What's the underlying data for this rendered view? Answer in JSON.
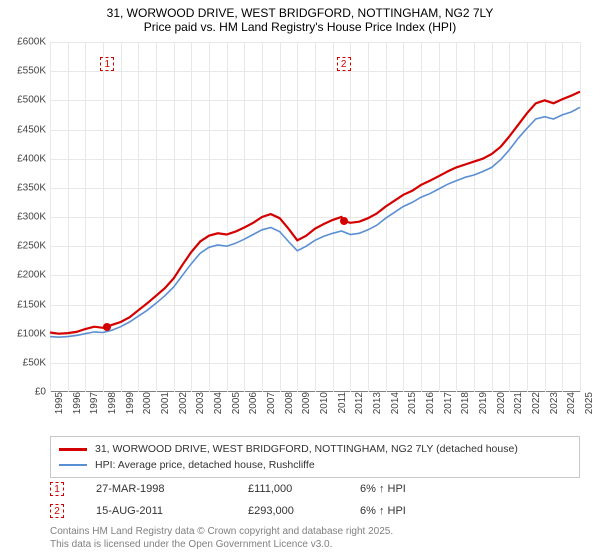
{
  "title": {
    "line1": "31, WORWOOD DRIVE, WEST BRIDGFORD, NOTTINGHAM, NG2 7LY",
    "line2": "Price paid vs. HM Land Registry's House Price Index (HPI)"
  },
  "chart": {
    "type": "line",
    "background_color": "#ffffff",
    "grid_color": "#e8e8e8",
    "axis_color": "#808080",
    "label_color": "#444444",
    "label_fontsize": 10,
    "x": {
      "min": 1995,
      "max": 2025,
      "tick_step": 1,
      "ticks": [
        1995,
        1996,
        1997,
        1998,
        1999,
        2000,
        2001,
        2002,
        2003,
        2004,
        2005,
        2006,
        2007,
        2008,
        2009,
        2010,
        2011,
        2012,
        2013,
        2014,
        2015,
        2016,
        2017,
        2018,
        2019,
        2020,
        2021,
        2022,
        2023,
        2024,
        2025
      ]
    },
    "y": {
      "min": 0,
      "max": 600000,
      "tick_step": 50000,
      "tick_labels": [
        "£0",
        "£50K",
        "£100K",
        "£150K",
        "£200K",
        "£250K",
        "£300K",
        "£350K",
        "£400K",
        "£450K",
        "£500K",
        "£550K",
        "£600K"
      ]
    },
    "series": [
      {
        "name": "price_paid",
        "label": "31, WORWOOD DRIVE, WEST BRIDGFORD, NOTTINGHAM, NG2 7LY (detached house)",
        "color": "#d40000",
        "width": 2.2,
        "data": [
          [
            1995.0,
            102000
          ],
          [
            1995.5,
            100000
          ],
          [
            1996.0,
            101000
          ],
          [
            1996.5,
            103000
          ],
          [
            1997.0,
            108000
          ],
          [
            1997.5,
            112000
          ],
          [
            1998.0,
            110000
          ],
          [
            1998.24,
            111000
          ],
          [
            1998.5,
            115000
          ],
          [
            1999.0,
            120000
          ],
          [
            1999.5,
            128000
          ],
          [
            2000.0,
            140000
          ],
          [
            2000.5,
            152000
          ],
          [
            2001.0,
            165000
          ],
          [
            2001.5,
            178000
          ],
          [
            2002.0,
            195000
          ],
          [
            2002.5,
            218000
          ],
          [
            2003.0,
            240000
          ],
          [
            2003.5,
            258000
          ],
          [
            2004.0,
            268000
          ],
          [
            2004.5,
            272000
          ],
          [
            2005.0,
            270000
          ],
          [
            2005.5,
            275000
          ],
          [
            2006.0,
            282000
          ],
          [
            2006.5,
            290000
          ],
          [
            2007.0,
            300000
          ],
          [
            2007.5,
            305000
          ],
          [
            2008.0,
            298000
          ],
          [
            2008.5,
            280000
          ],
          [
            2009.0,
            260000
          ],
          [
            2009.5,
            268000
          ],
          [
            2010.0,
            280000
          ],
          [
            2010.5,
            288000
          ],
          [
            2011.0,
            295000
          ],
          [
            2011.5,
            300000
          ],
          [
            2011.62,
            293000
          ],
          [
            2012.0,
            290000
          ],
          [
            2012.5,
            292000
          ],
          [
            2013.0,
            298000
          ],
          [
            2013.5,
            306000
          ],
          [
            2014.0,
            318000
          ],
          [
            2014.5,
            328000
          ],
          [
            2015.0,
            338000
          ],
          [
            2015.5,
            345000
          ],
          [
            2016.0,
            355000
          ],
          [
            2016.5,
            362000
          ],
          [
            2017.0,
            370000
          ],
          [
            2017.5,
            378000
          ],
          [
            2018.0,
            385000
          ],
          [
            2018.5,
            390000
          ],
          [
            2019.0,
            395000
          ],
          [
            2019.5,
            400000
          ],
          [
            2020.0,
            408000
          ],
          [
            2020.5,
            420000
          ],
          [
            2021.0,
            438000
          ],
          [
            2021.5,
            458000
          ],
          [
            2022.0,
            478000
          ],
          [
            2022.5,
            495000
          ],
          [
            2023.0,
            500000
          ],
          [
            2023.5,
            495000
          ],
          [
            2024.0,
            502000
          ],
          [
            2024.5,
            508000
          ],
          [
            2025.0,
            515000
          ]
        ]
      },
      {
        "name": "hpi",
        "label": "HPI: Average price, detached house, Rushcliffe",
        "color": "#5b8fd4",
        "width": 1.6,
        "data": [
          [
            1995.0,
            95000
          ],
          [
            1995.5,
            94000
          ],
          [
            1996.0,
            95000
          ],
          [
            1996.5,
            97000
          ],
          [
            1997.0,
            100000
          ],
          [
            1997.5,
            103000
          ],
          [
            1998.0,
            102000
          ],
          [
            1998.5,
            106000
          ],
          [
            1999.0,
            112000
          ],
          [
            1999.5,
            120000
          ],
          [
            2000.0,
            130000
          ],
          [
            2000.5,
            140000
          ],
          [
            2001.0,
            152000
          ],
          [
            2001.5,
            165000
          ],
          [
            2002.0,
            180000
          ],
          [
            2002.5,
            200000
          ],
          [
            2003.0,
            220000
          ],
          [
            2003.5,
            238000
          ],
          [
            2004.0,
            248000
          ],
          [
            2004.5,
            252000
          ],
          [
            2005.0,
            250000
          ],
          [
            2005.5,
            255000
          ],
          [
            2006.0,
            262000
          ],
          [
            2006.5,
            270000
          ],
          [
            2007.0,
            278000
          ],
          [
            2007.5,
            282000
          ],
          [
            2008.0,
            275000
          ],
          [
            2008.5,
            258000
          ],
          [
            2009.0,
            242000
          ],
          [
            2009.5,
            250000
          ],
          [
            2010.0,
            260000
          ],
          [
            2010.5,
            267000
          ],
          [
            2011.0,
            272000
          ],
          [
            2011.5,
            276000
          ],
          [
            2012.0,
            270000
          ],
          [
            2012.5,
            272000
          ],
          [
            2013.0,
            278000
          ],
          [
            2013.5,
            286000
          ],
          [
            2014.0,
            298000
          ],
          [
            2014.5,
            308000
          ],
          [
            2015.0,
            318000
          ],
          [
            2015.5,
            325000
          ],
          [
            2016.0,
            334000
          ],
          [
            2016.5,
            340000
          ],
          [
            2017.0,
            348000
          ],
          [
            2017.5,
            356000
          ],
          [
            2018.0,
            362000
          ],
          [
            2018.5,
            368000
          ],
          [
            2019.0,
            372000
          ],
          [
            2019.5,
            378000
          ],
          [
            2020.0,
            385000
          ],
          [
            2020.5,
            398000
          ],
          [
            2021.0,
            415000
          ],
          [
            2021.5,
            435000
          ],
          [
            2022.0,
            452000
          ],
          [
            2022.5,
            468000
          ],
          [
            2023.0,
            472000
          ],
          [
            2023.5,
            468000
          ],
          [
            2024.0,
            475000
          ],
          [
            2024.5,
            480000
          ],
          [
            2025.0,
            488000
          ]
        ]
      }
    ],
    "markers": [
      {
        "n": "1",
        "x": 1998.24,
        "y": 111000,
        "color": "#d40000"
      },
      {
        "n": "2",
        "x": 2011.62,
        "y": 293000,
        "color": "#d40000"
      }
    ]
  },
  "legend": {
    "items": [
      {
        "color": "#d40000",
        "thickness": 3,
        "label": "31, WORWOOD DRIVE, WEST BRIDGFORD, NOTTINGHAM, NG2 7LY (detached house)"
      },
      {
        "color": "#5b8fd4",
        "thickness": 2,
        "label": "HPI: Average price, detached house, Rushcliffe"
      }
    ]
  },
  "annotations": [
    {
      "n": "1",
      "color": "#d40000",
      "date": "27-MAR-1998",
      "price": "£111,000",
      "pct": "6% ↑ HPI"
    },
    {
      "n": "2",
      "color": "#d40000",
      "date": "15-AUG-2011",
      "price": "£293,000",
      "pct": "6% ↑ HPI"
    }
  ],
  "footer": {
    "line1": "Contains HM Land Registry data © Crown copyright and database right 2025.",
    "line2": "This data is licensed under the Open Government Licence v3.0."
  }
}
